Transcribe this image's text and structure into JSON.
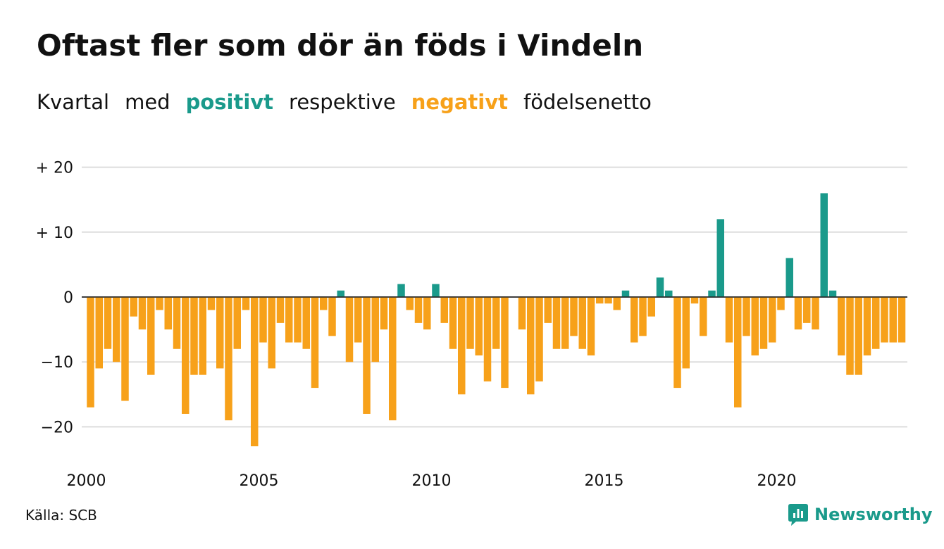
{
  "title": "Oftast fler som dör än föds i Vindeln",
  "subtitle": {
    "part1": "Kvartal",
    "part2": "med",
    "positive_word": "positivt",
    "part3": "respektive",
    "negative_word": "negativt",
    "part4": "födelsenetto"
  },
  "colors": {
    "positive": "#1a9a8b",
    "negative": "#f7a11a",
    "grid": "#dddddd",
    "text": "#111111"
  },
  "source": "Källa: SCB",
  "brand": {
    "name": "Newsworthy",
    "icon": "newsworthy-logo-icon"
  },
  "chart_data": {
    "type": "bar",
    "title": "Oftast fler som dör än föds i Vindeln",
    "subtitle": "Kvartal med positivt respektive negativt födelsenetto",
    "ylim": [
      -25,
      20
    ],
    "yticks": [
      20,
      10,
      0,
      -10,
      -20
    ],
    "ytick_labels": [
      "+ 20",
      "+ 10",
      "0",
      "−10",
      "−20"
    ],
    "xtick_labels": [
      "2000",
      "2005",
      "2010",
      "2015",
      "2020"
    ],
    "xtick_years": [
      2000,
      2005,
      2010,
      2015,
      2020
    ],
    "start_year": 2000,
    "periods_per_year": 4,
    "grid": true,
    "legend": "none",
    "series": [
      {
        "values": [
          -17,
          -11,
          -8,
          -10,
          -16,
          -3,
          -5,
          -12,
          -2,
          -5,
          -8,
          -18,
          -12,
          -12,
          -2,
          -11,
          -19,
          -8,
          -2,
          -23,
          -7,
          -11,
          -4,
          -7,
          -7,
          -8,
          -14,
          -2,
          -6,
          1,
          -10,
          -7,
          -18,
          -10,
          -5,
          -19,
          2,
          -2,
          -4,
          -5,
          2,
          -4,
          -8,
          -15,
          -8,
          -9,
          -13,
          -8,
          -14,
          0,
          -5,
          -15,
          -13,
          -4,
          -8,
          -8,
          -6,
          -8,
          -9,
          -1,
          -1,
          -2,
          1,
          -7,
          -6,
          -3,
          3,
          1,
          -14,
          -11,
          -1,
          -6,
          1,
          12,
          -7,
          -17,
          -6,
          -9,
          -8,
          -7,
          -2,
          6,
          -5,
          -4,
          -5,
          16,
          1,
          -9,
          -12,
          -12,
          -9,
          -8,
          -7,
          -7,
          -7
        ]
      }
    ]
  }
}
